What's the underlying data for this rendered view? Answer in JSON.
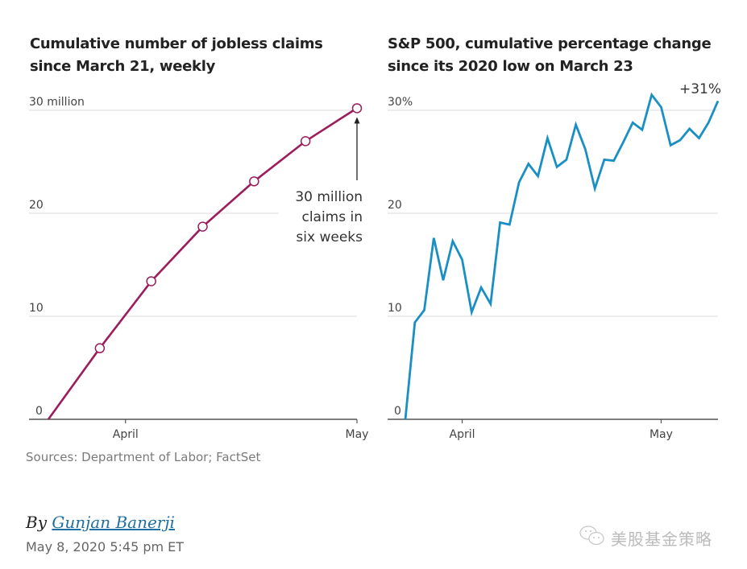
{
  "chart_data": [
    {
      "type": "line",
      "title": "Cumulative number of jobless claims since March 21, weekly",
      "xlabel": "",
      "ylabel": "",
      "y_unit_label": "30 million",
      "ylim": [
        0,
        30
      ],
      "yticks": [
        0,
        10,
        20,
        30
      ],
      "ytick_labels": [
        "0",
        "10",
        "20",
        "30 million"
      ],
      "xtick_labels": [
        "April",
        "May"
      ],
      "xtick_positions": [
        1.5,
        6.0
      ],
      "grid": true,
      "color": "#9b1d5c",
      "markers": true,
      "x": [
        0,
        1,
        2,
        3,
        4,
        5,
        6
      ],
      "x_dates": [
        "Mar 21",
        "Mar 28",
        "Apr 4",
        "Apr 11",
        "Apr 18",
        "Apr 25",
        "May 2"
      ],
      "values": [
        0,
        6.9,
        13.4,
        18.7,
        23.1,
        27.0,
        30.2
      ],
      "annotation": {
        "lines": [
          "30 million",
          "claims in",
          "six weeks"
        ],
        "target_index": 6
      }
    },
    {
      "type": "line",
      "title": "S&P 500, cumulative percentage change since its 2020 low on March 23",
      "xlabel": "",
      "ylabel": "",
      "ylim": [
        0,
        30
      ],
      "yticks": [
        0,
        10,
        20,
        30
      ],
      "ytick_labels": [
        "0",
        "10",
        "20",
        "30%"
      ],
      "xtick_labels": [
        "April",
        "May"
      ],
      "xtick_positions": [
        6,
        27
      ],
      "grid": true,
      "color": "#1a8fc4",
      "markers": false,
      "x": [
        0,
        1,
        2,
        3,
        4,
        5,
        6,
        7,
        8,
        9,
        10,
        11,
        12,
        13,
        14,
        15,
        16,
        17,
        18,
        19,
        20,
        21,
        22,
        23,
        24,
        25,
        26,
        27,
        28,
        29,
        30,
        31,
        32,
        33
      ],
      "values": [
        0,
        9.4,
        10.6,
        17.6,
        13.5,
        17.3,
        15.5,
        10.4,
        12.8,
        11.2,
        19.1,
        18.9,
        23.0,
        24.8,
        23.6,
        27.3,
        24.5,
        25.2,
        28.6,
        26.2,
        22.4,
        25.2,
        25.1,
        26.9,
        28.8,
        28.1,
        31.5,
        30.3,
        26.6,
        27.1,
        28.2,
        27.3,
        28.8,
        30.9
      ],
      "end_label": "+31%"
    }
  ],
  "source": "Sources: Department of Labor; FactSet",
  "byline": {
    "prefix": "By",
    "author": "Gunjan Banerji"
  },
  "date": "May 8, 2020 5:45 pm ET",
  "watermark": {
    "icon": "wechat-icon",
    "text": "美股基金策略"
  }
}
